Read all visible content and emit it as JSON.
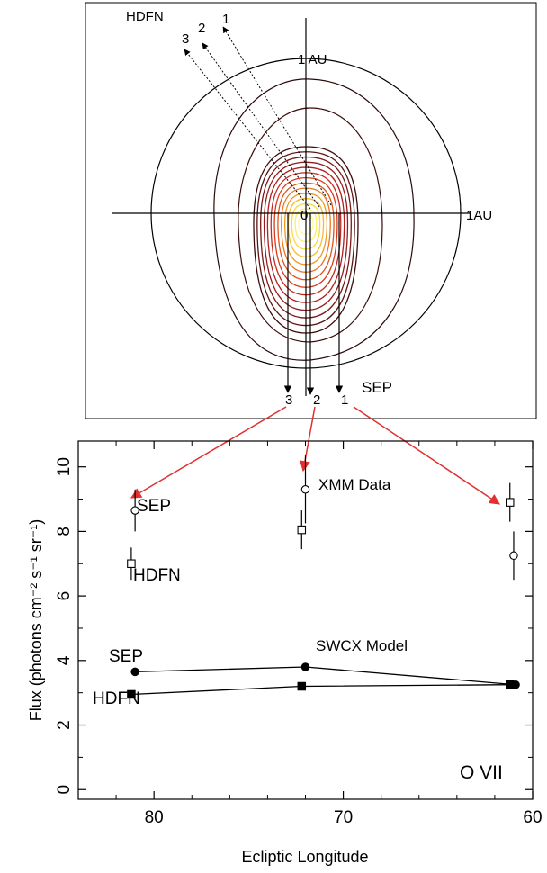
{
  "top_panel": {
    "labels": {
      "hdfn": "HDFN",
      "au_vertical": "1 AU",
      "au_horizontal": "1AU",
      "origin": "0",
      "sep": "SEP",
      "hdfn_arrows": [
        "3",
        "2",
        "1"
      ],
      "sep_arrows": [
        "3",
        "2",
        "1"
      ]
    },
    "contour_colors": [
      "#3b0c0c",
      "#5c1414",
      "#7a1818",
      "#951c1c",
      "#b02020",
      "#c52a20",
      "#d63c1c",
      "#e2561c",
      "#ea7820",
      "#f09a26",
      "#f5bc30",
      "#f9da44",
      "#fcef66",
      "#fffa9a"
    ],
    "arrow_color": "#e03030"
  },
  "chart_data": {
    "type": "scatter",
    "xlabel": "Ecliptic Longitude",
    "ylabel": "Flux (photons cm⁻² s⁻¹ sr⁻¹)",
    "xlim": [
      84,
      60
    ],
    "ylim": [
      -0.3,
      10.8
    ],
    "x_ticks": [
      80,
      70,
      60
    ],
    "y_ticks": [
      0,
      2,
      4,
      6,
      8,
      10
    ],
    "annotations": {
      "xmm": "XMM Data",
      "model": "SWCX Model",
      "sep_data": "SEP",
      "hdfn_data": "HDFN",
      "sep_model": "SEP",
      "hdfn_model": "HDFN",
      "ion": "O VII"
    },
    "series": [
      {
        "name": "XMM Data SEP",
        "marker": "open-circle",
        "points": [
          {
            "x": 81,
            "y": 8.65,
            "err": 0.65
          },
          {
            "x": 72,
            "y": 9.3,
            "err": 1.05
          },
          {
            "x": 61,
            "y": 7.25,
            "err": 0.75
          }
        ]
      },
      {
        "name": "XMM Data HDFN",
        "marker": "open-square",
        "points": [
          {
            "x": 81.2,
            "y": 7.0,
            "err": 0.5
          },
          {
            "x": 72.2,
            "y": 8.05,
            "err": 0.6
          },
          {
            "x": 61.2,
            "y": 8.9,
            "err": 0.6
          }
        ]
      },
      {
        "name": "SWCX Model SEP",
        "marker": "filled-circle",
        "points": [
          {
            "x": 81,
            "y": 3.65
          },
          {
            "x": 72,
            "y": 3.8
          },
          {
            "x": 60.9,
            "y": 3.25
          }
        ]
      },
      {
        "name": "SWCX Model HDFN",
        "marker": "filled-square",
        "points": [
          {
            "x": 81.2,
            "y": 2.95
          },
          {
            "x": 72.2,
            "y": 3.2
          },
          {
            "x": 61.2,
            "y": 3.25
          }
        ]
      }
    ]
  }
}
